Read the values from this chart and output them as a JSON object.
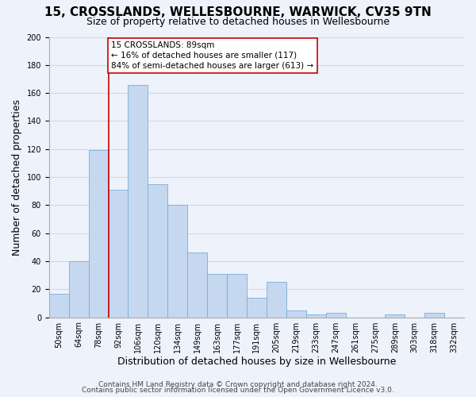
{
  "title": "15, CROSSLANDS, WELLESBOURNE, WARWICK, CV35 9TN",
  "subtitle": "Size of property relative to detached houses in Wellesbourne",
  "xlabel": "Distribution of detached houses by size in Wellesbourne",
  "ylabel": "Number of detached properties",
  "bar_labels": [
    "50sqm",
    "64sqm",
    "78sqm",
    "92sqm",
    "106sqm",
    "120sqm",
    "134sqm",
    "149sqm",
    "163sqm",
    "177sqm",
    "191sqm",
    "205sqm",
    "219sqm",
    "233sqm",
    "247sqm",
    "261sqm",
    "275sqm",
    "289sqm",
    "303sqm",
    "318sqm",
    "332sqm"
  ],
  "bar_values": [
    17,
    40,
    119,
    91,
    166,
    95,
    80,
    46,
    31,
    31,
    14,
    25,
    5,
    2,
    3,
    0,
    0,
    2,
    0,
    3,
    0
  ],
  "bar_color": "#c5d8f0",
  "bar_edge_color": "#7aadd4",
  "annotation_line_color": "#cc0000",
  "annotation_box_text": "15 CROSSLANDS: 89sqm\n← 16% of detached houses are smaller (117)\n84% of semi-detached houses are larger (613) →",
  "ylim": [
    0,
    200
  ],
  "yticks": [
    0,
    20,
    40,
    60,
    80,
    100,
    120,
    140,
    160,
    180,
    200
  ],
  "red_line_bar_index": 3,
  "footer_line1": "Contains HM Land Registry data © Crown copyright and database right 2024.",
  "footer_line2": "Contains public sector information licensed under the Open Government Licence v3.0.",
  "background_color": "#eef2fb",
  "grid_color": "#d0d8ee",
  "title_fontsize": 11,
  "subtitle_fontsize": 9,
  "axis_label_fontsize": 9,
  "tick_fontsize": 7,
  "annotation_fontsize": 7.5,
  "footer_fontsize": 6.5
}
